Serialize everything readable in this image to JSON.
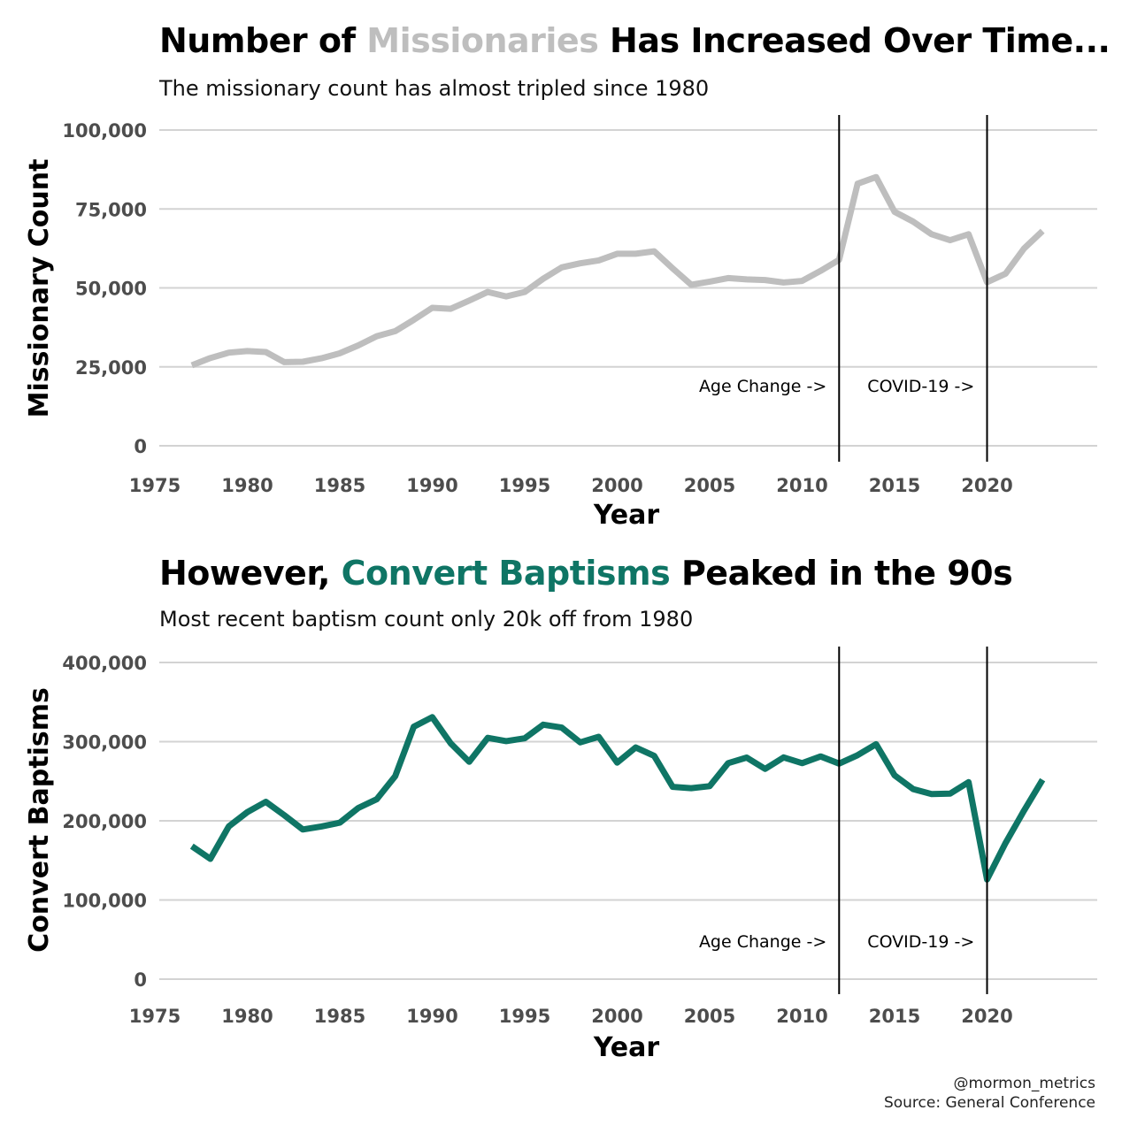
{
  "colors": {
    "missionary": "#bebebe",
    "baptism": "#0f7565",
    "grid": "#d3d3d3",
    "tick": "#4d4d4d",
    "vline": "#000000"
  },
  "annotations": {
    "age_change": "Age Change ->",
    "covid": "COVID-19 ->",
    "age_change_year": 2012,
    "covid_year": 2020
  },
  "top": {
    "title_pre": "Number of ",
    "title_highlight": "Missionaries",
    "title_post": " Has Increased Over Time...",
    "subtitle": "The missionary count has almost tripled since 1980"
  },
  "bottom": {
    "title_pre": "However, ",
    "title_highlight": "Convert Baptisms",
    "title_post": " Peaked in the 90s",
    "subtitle": "Most recent baptism count only 20k off from 1980"
  },
  "caption": {
    "handle": "@mormon_metrics",
    "source": "Source: General Conference"
  },
  "chart_data": [
    {
      "type": "line",
      "title": "Number of Missionaries Has Increased Over Time...",
      "xlabel": "Year",
      "ylabel": "Missionary Count",
      "xlim": [
        1975,
        2025
      ],
      "ylim": [
        0,
        105000
      ],
      "xticks": [
        1975,
        1980,
        1985,
        1990,
        1995,
        2000,
        2005,
        2010,
        2015,
        2020
      ],
      "xtick_labels": [
        "1975",
        "1980",
        "1985",
        "1990",
        "1995",
        "2000",
        "2005",
        "2010",
        "2015",
        "2020"
      ],
      "yticks": [
        0,
        25000,
        50000,
        75000,
        100000
      ],
      "ytick_labels": [
        "0",
        "25,000",
        "50,000",
        "75,000",
        "100,000"
      ],
      "series": [
        {
          "name": "Missionaries",
          "x": [
            1977,
            1978,
            1979,
            1980,
            1981,
            1982,
            1983,
            1984,
            1985,
            1986,
            1987,
            1988,
            1989,
            1990,
            1991,
            1992,
            1993,
            1994,
            1995,
            1996,
            1997,
            1998,
            1999,
            2000,
            2001,
            2002,
            2003,
            2004,
            2005,
            2006,
            2007,
            2008,
            2009,
            2010,
            2011,
            2012,
            2013,
            2014,
            2015,
            2016,
            2017,
            2018,
            2019,
            2020,
            2021,
            2022,
            2023
          ],
          "values": [
            25500,
            27800,
            29500,
            30000,
            29700,
            26500,
            26600,
            27700,
            29300,
            31800,
            34700,
            36300,
            39900,
            43700,
            43400,
            46000,
            48700,
            47300,
            48700,
            52900,
            56500,
            57800,
            58700,
            60800,
            60800,
            61600,
            56200,
            51000,
            52000,
            53100,
            52700,
            52500,
            51700,
            52200,
            55400,
            58900,
            83000,
            85100,
            74100,
            71000,
            67000,
            65100,
            67000,
            51800,
            54500,
            62500,
            68000
          ]
        }
      ]
    },
    {
      "type": "line",
      "title": "However, Convert Baptisms Peaked in the 90s",
      "xlabel": "Year",
      "ylabel": "Convert Baptisms",
      "xlim": [
        1975,
        2025
      ],
      "ylim": [
        0,
        420000
      ],
      "xticks": [
        1975,
        1980,
        1985,
        1990,
        1995,
        2000,
        2005,
        2010,
        2015,
        2020
      ],
      "xtick_labels": [
        "1975",
        "1980",
        "1985",
        "1990",
        "1995",
        "2000",
        "2005",
        "2010",
        "2015",
        "2020"
      ],
      "yticks": [
        0,
        100000,
        200000,
        300000,
        400000
      ],
      "ytick_labels": [
        "0",
        "100,000",
        "200,000",
        "300,000",
        "400,000"
      ],
      "series": [
        {
          "name": "Convert Baptisms",
          "x": [
            1977,
            1978,
            1979,
            1980,
            1981,
            1982,
            1983,
            1984,
            1985,
            1986,
            1987,
            1988,
            1989,
            1990,
            1991,
            1992,
            1993,
            1994,
            1995,
            1996,
            1997,
            1998,
            1999,
            2000,
            2001,
            2002,
            2003,
            2004,
            2005,
            2006,
            2007,
            2008,
            2009,
            2010,
            2011,
            2012,
            2013,
            2014,
            2015,
            2016,
            2017,
            2018,
            2019,
            2020,
            2021,
            2022,
            2023
          ],
          "values": [
            167900,
            152000,
            193000,
            211000,
            224000,
            207000,
            189000,
            192900,
            197600,
            216200,
            227300,
            256500,
            318900,
            330900,
            297800,
            274500,
            304800,
            300700,
            304300,
            321400,
            317800,
            299100,
            306200,
            273500,
            292600,
            282000,
            242900,
            241200,
            243800,
            272800,
            279900,
            265600,
            280100,
            272800,
            281300,
            272300,
            282900,
            296800,
            257400,
            240100,
            233700,
            234300,
            248800,
            125900,
            172000,
            213000,
            251800
          ]
        }
      ]
    }
  ]
}
